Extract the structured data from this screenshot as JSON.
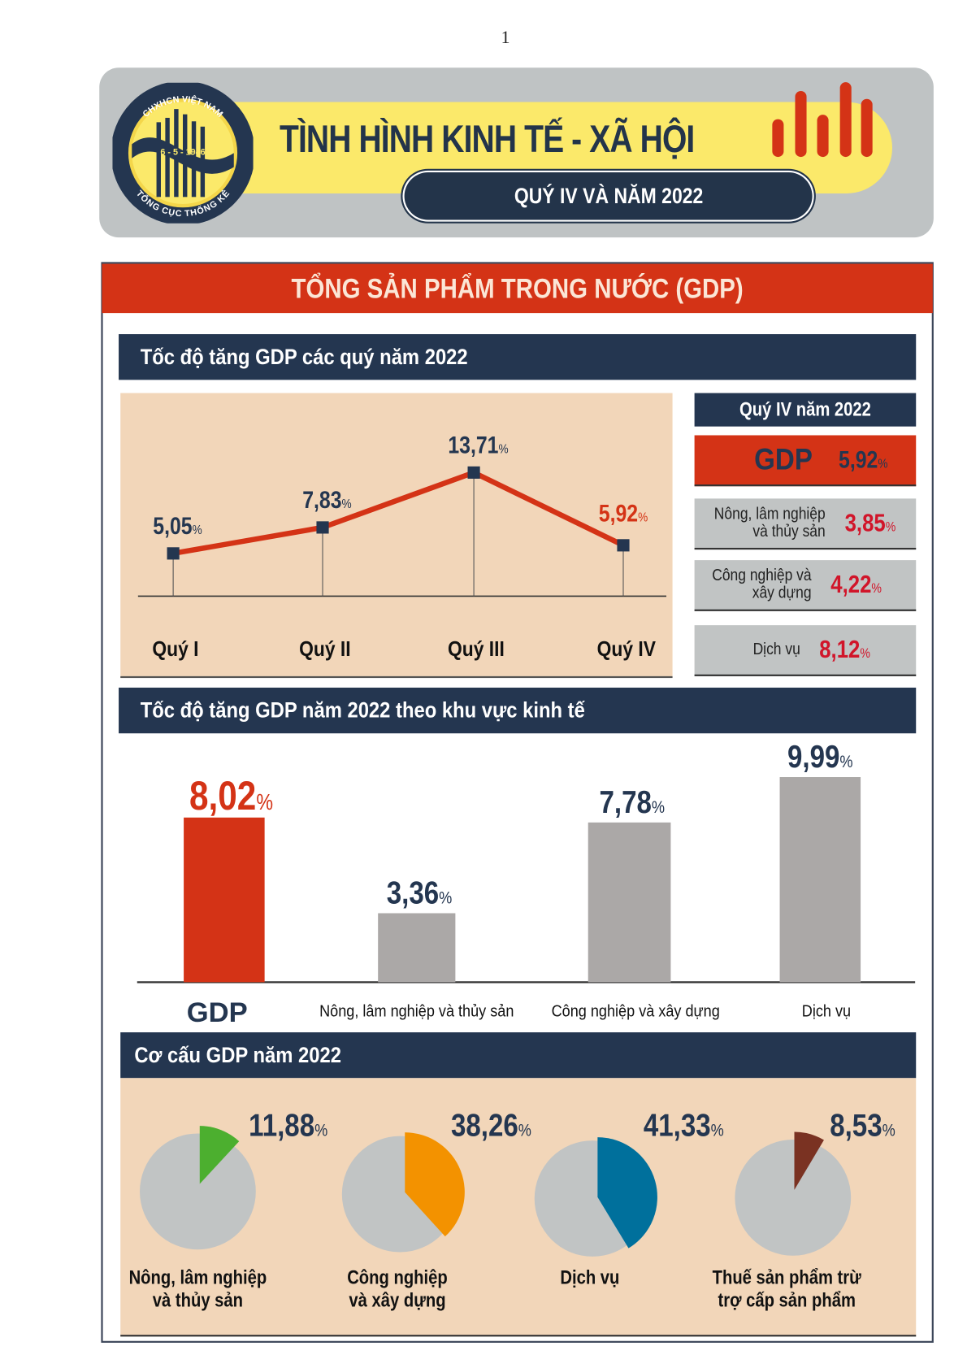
{
  "page_number": "1",
  "header": {
    "title": "TÌNH HÌNH KINH TẾ - XÃ HỘI",
    "subtitle": "QUÝ IV VÀ NĂM 2022",
    "logo": {
      "top_text": "CHXHCN VIỆT NAM",
      "date": "6 - 5 - 1946",
      "bottom_text": "TỔNG CỤC THỐNG KÊ"
    }
  },
  "section_title": "TỔNG SẢN PHẨM TRONG NƯỚC (GDP)",
  "pct_sign": "%",
  "colors": {
    "red": "#d43316",
    "navy": "#243650",
    "peach": "#f2d6b9",
    "gray": "#c1c4c4",
    "bar_gray": "#aba8a7",
    "green": "#4caf2f",
    "orange": "#f39200",
    "blue": "#00709c",
    "brown": "#7a3222"
  },
  "quarterly": {
    "heading": "Tốc độ tăng GDP các quý năm 2022",
    "panel_title": "Quý IV năm 2022",
    "gdp_label": "GDP",
    "gdp_value": "5,92",
    "sectors": [
      {
        "label_lines": [
          "Nông, lâm nghiệp",
          "và thủy sản"
        ],
        "value": "3,85"
      },
      {
        "label_lines": [
          "Công nghiệp và",
          "xây dựng"
        ],
        "value": "4,22"
      },
      {
        "label_lines": [
          "Dịch vụ"
        ],
        "value": "8,12"
      }
    ]
  },
  "sector_heading": "Tốc độ tăng GDP năm 2022 theo khu vực kinh tế",
  "structure_heading": "Cơ cấu GDP năm 2022",
  "chart_data": [
    {
      "type": "line",
      "categories": [
        "Quý I",
        "Quý II",
        "Quý III",
        "Quý IV"
      ],
      "values": [
        5.05,
        7.83,
        13.71,
        5.92
      ],
      "labels": [
        "5,05",
        "7,83",
        "13,71",
        "5,92"
      ],
      "unit": "%",
      "color": "#d43316"
    },
    {
      "type": "bar",
      "categories": [
        "GDP",
        "Nông, lâm nghiệp và thủy sản",
        "Công nghiệp và xây dựng",
        "Dịch vụ"
      ],
      "values": [
        8.02,
        3.36,
        7.78,
        9.99
      ],
      "labels": [
        "8,02",
        "3,36",
        "7,78",
        "9,99"
      ],
      "unit": "%",
      "colors": [
        "#d43316",
        "#aba8a7",
        "#aba8a7",
        "#aba8a7"
      ]
    },
    {
      "type": "pie",
      "charts": [
        {
          "label_lines": [
            "Nông, lâm nghiệp",
            "và thủy sản"
          ],
          "value": 11.88,
          "label": "11,88",
          "color": "#4caf2f"
        },
        {
          "label_lines": [
            "Công nghiệp",
            "và xây dựng"
          ],
          "value": 38.26,
          "label": "38,26",
          "color": "#f39200"
        },
        {
          "label_lines": [
            "Dịch vụ"
          ],
          "value": 41.33,
          "label": "41,33",
          "color": "#00709c"
        },
        {
          "label_lines": [
            "Thuế sản phẩm trừ",
            "trợ cấp sản phẩm"
          ],
          "value": 8.53,
          "label": "8,53",
          "color": "#7a3222"
        }
      ],
      "unit": "%"
    }
  ]
}
